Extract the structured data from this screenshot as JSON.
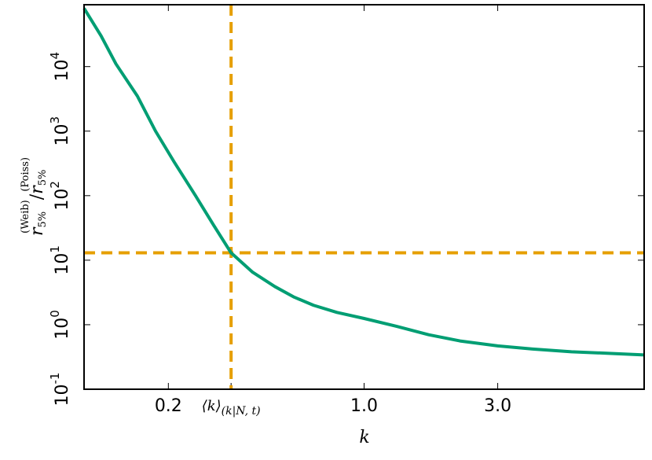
{
  "chart_data": {
    "type": "line",
    "xlabel": "k",
    "ylabel": {
      "numerator": "r",
      "num_sub": "5%",
      "num_sup": "(Weib)",
      "slash": "/",
      "denominator": "r",
      "den_sub": "5%",
      "den_sup": "(Poiss)"
    },
    "x": [
      0.1,
      0.115,
      0.13,
      0.155,
      0.18,
      0.21,
      0.25,
      0.29,
      0.335,
      0.4,
      0.48,
      0.56,
      0.66,
      0.8,
      1,
      1.3,
      1.7,
      2.2,
      3,
      4,
      5.5,
      7.5,
      10
    ],
    "values": [
      80000,
      30000,
      11000,
      3500,
      1000,
      330,
      100,
      35,
      13,
      6.5,
      3.9,
      2.7,
      2,
      1.55,
      1.25,
      0.95,
      0.7,
      0.56,
      0.47,
      0.42,
      0.38,
      0.36,
      0.34
    ],
    "color": "#009e73",
    "xscale": "log",
    "yscale": "log",
    "xlim": [
      0.1,
      10
    ],
    "ylim": [
      0.1,
      91000
    ],
    "xticks": [
      0.2,
      {
        "value": 0.335,
        "label": "⟨k⟩",
        "subscript": "(k|N, t)"
      },
      {
        "value": 1,
        "label": "1.0"
      },
      {
        "value": 3,
        "label": "3.0"
      }
    ],
    "yticks": [
      {
        "value": 0.1,
        "label": "10",
        "power": "-1"
      },
      {
        "value": 1,
        "label": "10",
        "power": "0"
      },
      {
        "value": 10,
        "label": "10",
        "power": "1"
      },
      {
        "value": 100,
        "label": "10",
        "power": "2"
      },
      {
        "value": 1000,
        "label": "10",
        "power": "3"
      },
      {
        "value": 10000,
        "label": "10",
        "power": "4"
      }
    ],
    "reference_lines": {
      "x": 0.335,
      "y": 13,
      "color": "#e69f00"
    }
  }
}
